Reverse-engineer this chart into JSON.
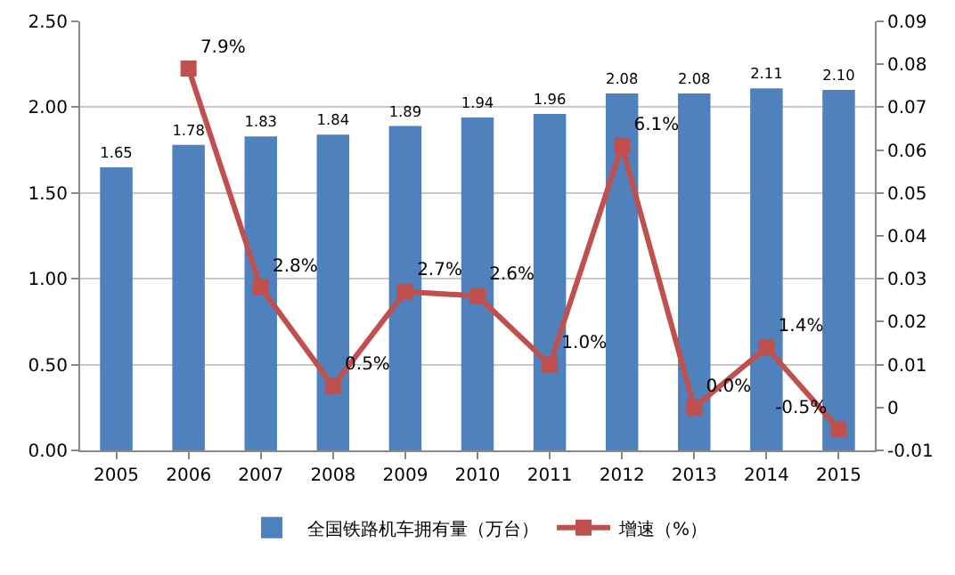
{
  "chart_data": {
    "type": "bar",
    "categories": [
      "2005",
      "2006",
      "2007",
      "2008",
      "2009",
      "2010",
      "2011",
      "2012",
      "2013",
      "2014",
      "2015"
    ],
    "series": [
      {
        "name": "全国铁路机车拥有量（万台）",
        "color": "#4f81bd",
        "values": [
          1.65,
          1.78,
          1.83,
          1.84,
          1.89,
          1.94,
          1.96,
          2.08,
          2.08,
          2.11,
          2.1
        ],
        "value_labels": [
          "1.65",
          "1.78",
          "1.83",
          "1.84",
          "1.89",
          "1.94",
          "1.96",
          "2.08",
          "2.08",
          "2.11",
          "2.10"
        ]
      },
      {
        "name": "增速（%）",
        "type": "line",
        "axis": "y2",
        "color": "#c0504d",
        "marker": "square",
        "values": [
          null,
          0.079,
          0.028,
          0.005,
          0.027,
          0.026,
          0.01,
          0.061,
          0.0,
          0.014,
          -0.005
        ],
        "value_labels": [
          null,
          "7.9%",
          "2.8%",
          "0.5%",
          "2.7%",
          "2.6%",
          "1.0%",
          "6.1%",
          "0.0%",
          "1.4%",
          "-0.5%"
        ]
      }
    ],
    "ylim": [
      0,
      2.5
    ],
    "yticks": [
      {
        "value": 0,
        "label": "0.00"
      },
      {
        "value": 0.5,
        "label": "0.50"
      },
      {
        "value": 1,
        "label": "1.00"
      },
      {
        "value": 1.5,
        "label": "1.50"
      },
      {
        "value": 2,
        "label": "2.00"
      },
      {
        "value": 2.5,
        "label": "2.50"
      }
    ],
    "y2lim": [
      -0.01,
      0.09
    ],
    "y2ticks": [
      -0.01,
      0,
      0.01,
      0.02,
      0.03,
      0.04,
      0.05,
      0.06,
      0.07,
      0.08,
      0.09
    ],
    "grid": "y",
    "legend": "bottom"
  }
}
